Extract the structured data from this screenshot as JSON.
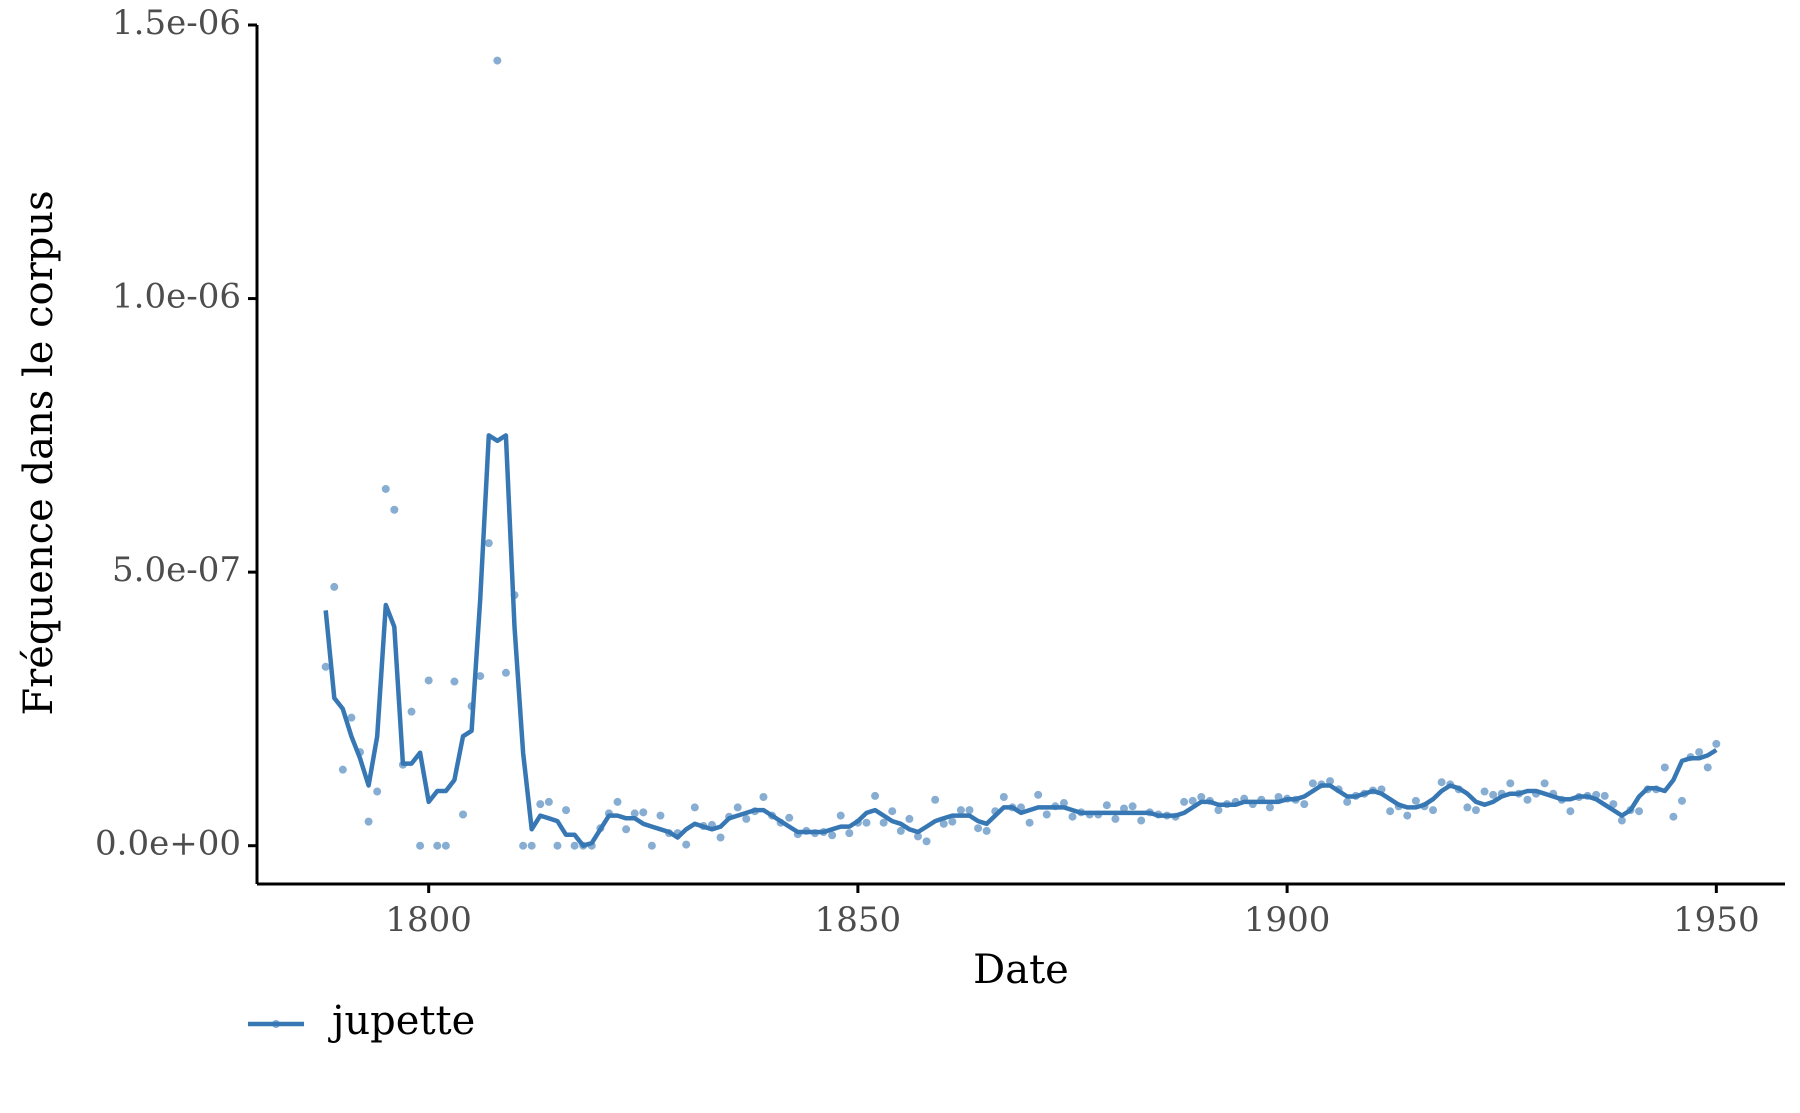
{
  "chart_data": {
    "type": "line",
    "xlabel": "Date",
    "ylabel": "Fréquence dans le corpus",
    "xlim": [
      1780,
      1958
    ],
    "xticks": [
      1800,
      1850,
      1900,
      1950
    ],
    "ylim": [
      -7e-08,
      1.5e-06
    ],
    "yticks": [
      {
        "value": 0,
        "label": "0.0e+00"
      },
      {
        "value": 5e-07,
        "label": "5.0e-07"
      },
      {
        "value": 1e-06,
        "label": "1.0e-06"
      },
      {
        "value": 1.5e-06,
        "label": "1.5e-06"
      }
    ],
    "legend": "bottom-left",
    "series": [
      {
        "name": "jupette",
        "color": "#3778b4",
        "x": [
          1788,
          1789,
          1790,
          1791,
          1792,
          1793,
          1794,
          1795,
          1796,
          1797,
          1798,
          1799,
          1800,
          1801,
          1802,
          1803,
          1804,
          1805,
          1806,
          1807,
          1808,
          1809,
          1810,
          1811,
          1812,
          1813,
          1814,
          1815,
          1816,
          1817,
          1818,
          1819,
          1820,
          1821,
          1822,
          1823,
          1824,
          1825,
          1826,
          1827,
          1828,
          1829,
          1830,
          1831,
          1832,
          1833,
          1834,
          1835,
          1836,
          1837,
          1838,
          1839,
          1840,
          1841,
          1842,
          1843,
          1844,
          1845,
          1846,
          1847,
          1848,
          1849,
          1850,
          1851,
          1852,
          1853,
          1854,
          1855,
          1856,
          1857,
          1858,
          1859,
          1860,
          1861,
          1862,
          1863,
          1864,
          1865,
          1866,
          1867,
          1868,
          1869,
          1870,
          1871,
          1872,
          1873,
          1874,
          1875,
          1876,
          1877,
          1878,
          1879,
          1880,
          1881,
          1882,
          1883,
          1884,
          1885,
          1886,
          1887,
          1888,
          1889,
          1890,
          1891,
          1892,
          1893,
          1894,
          1895,
          1896,
          1897,
          1898,
          1899,
          1900,
          1901,
          1902,
          1903,
          1904,
          1905,
          1906,
          1907,
          1908,
          1909,
          1910,
          1911,
          1912,
          1913,
          1914,
          1915,
          1916,
          1917,
          1918,
          1919,
          1920,
          1921,
          1922,
          1923,
          1924,
          1925,
          1926,
          1927,
          1928,
          1929,
          1930,
          1931,
          1932,
          1933,
          1934,
          1935,
          1936,
          1937,
          1938,
          1939,
          1940,
          1941,
          1942,
          1943,
          1944,
          1945,
          1946,
          1947,
          1948,
          1949,
          1950
        ],
        "values": [
          3.27e-07,
          4.73e-07,
          1.39e-07,
          2.34e-07,
          1.71e-07,
          4.4e-08,
          9.9e-08,
          6.52e-07,
          6.14e-07,
          1.48e-07,
          2.45e-07,
          0,
          3.02e-07,
          0,
          0,
          3e-07,
          5.7e-08,
          2.55e-07,
          3.1e-07,
          5.53e-07,
          1.435e-06,
          3.16e-07,
          4.58e-07,
          0,
          0,
          7.6e-08,
          8e-08,
          0,
          6.5e-08,
          0,
          0,
          0,
          3.2e-08,
          5.9e-08,
          8e-08,
          3e-08,
          5.9e-08,
          6.1e-08,
          0,
          5.5e-08,
          2.3e-08,
          2.3e-08,
          2e-09,
          7e-08,
          3.6e-08,
          3.8e-08,
          1.5e-08,
          5.3e-08,
          7e-08,
          4.9e-08,
          6.3e-08,
          8.9e-08,
          5.5e-08,
          4.2e-08,
          5.1e-08,
          2.1e-08,
          2.7e-08,
          2.3e-08,
          2.5e-08,
          1.9e-08,
          5.5e-08,
          2.3e-08,
          4.2e-08,
          4.2e-08,
          9.1e-08,
          4.2e-08,
          6.3e-08,
          2.7e-08,
          4.9e-08,
          1.7e-08,
          8e-09,
          8.4e-08,
          4e-08,
          4.4e-08,
          6.5e-08,
          6.5e-08,
          3.2e-08,
          2.7e-08,
          6.3e-08,
          8.9e-08,
          7e-08,
          7e-08,
          4.2e-08,
          9.3e-08,
          5.7e-08,
          7.2e-08,
          7.8e-08,
          5.3e-08,
          6.1e-08,
          5.7e-08,
          5.7e-08,
          7.4e-08,
          4.9e-08,
          6.8e-08,
          7.2e-08,
          4.6e-08,
          6.1e-08,
          5.7e-08,
          5.5e-08,
          5.3e-08,
          8e-08,
          8.2e-08,
          8.9e-08,
          8.2e-08,
          6.5e-08,
          7.6e-08,
          8e-08,
          8.6e-08,
          7.6e-08,
          8.4e-08,
          7e-08,
          8.9e-08,
          8.6e-08,
          8.4e-08,
          7.6e-08,
          1.14e-07,
          1.12e-07,
          1.18e-07,
          1.03e-07,
          8e-08,
          9.1e-08,
          9.5e-08,
          1.01e-07,
          1.03e-07,
          6.3e-08,
          7.2e-08,
          5.5e-08,
          8.2e-08,
          7.2e-08,
          6.5e-08,
          1.16e-07,
          1.12e-07,
          1.03e-07,
          7e-08,
          6.5e-08,
          9.9e-08,
          9.3e-08,
          9.5e-08,
          1.14e-07,
          9.5e-08,
          8.4e-08,
          9.5e-08,
          1.14e-07,
          9.5e-08,
          8.4e-08,
          6.3e-08,
          8.9e-08,
          9.1e-08,
          9.3e-08,
          9.1e-08,
          7.6e-08,
          4.6e-08,
          6.5e-08,
          6.3e-08,
          1.03e-07,
          1.03e-07,
          1.43e-07,
          5.3e-08,
          8.2e-08,
          1.62e-07,
          1.71e-07,
          1.43e-07,
          1.86e-07
        ],
        "smooth": [
          4.3e-07,
          2.7e-07,
          2.5e-07,
          2e-07,
          1.6e-07,
          1.1e-07,
          2e-07,
          4.4e-07,
          4e-07,
          1.5e-07,
          1.5e-07,
          1.7e-07,
          8e-08,
          1e-07,
          1e-07,
          1.2e-07,
          2e-07,
          2.1e-07,
          4.5e-07,
          7.5e-07,
          7.4e-07,
          7.5e-07,
          4e-07,
          1.7e-07,
          3e-08,
          5.5e-08,
          5e-08,
          4.5e-08,
          2e-08,
          2e-08,
          0,
          5e-09,
          3e-08,
          5.5e-08,
          5.5e-08,
          5e-08,
          5e-08,
          4e-08,
          3.5e-08,
          3e-08,
          2.5e-08,
          1.5e-08,
          3e-08,
          4e-08,
          3.5e-08,
          3e-08,
          3.5e-08,
          5e-08,
          5.5e-08,
          6e-08,
          6.5e-08,
          6.5e-08,
          5.5e-08,
          4.5e-08,
          3.5e-08,
          2.5e-08,
          2.5e-08,
          2.5e-08,
          2.5e-08,
          3e-08,
          3.5e-08,
          3.5e-08,
          4.5e-08,
          6e-08,
          6.5e-08,
          5.5e-08,
          4.5e-08,
          4e-08,
          3e-08,
          2.5e-08,
          3.5e-08,
          4.5e-08,
          5e-08,
          5.5e-08,
          5.5e-08,
          5.5e-08,
          4.5e-08,
          4e-08,
          5.5e-08,
          7e-08,
          7e-08,
          6e-08,
          6.5e-08,
          7e-08,
          7e-08,
          7e-08,
          7e-08,
          6.5e-08,
          6e-08,
          6e-08,
          6e-08,
          6e-08,
          6e-08,
          6e-08,
          6e-08,
          6e-08,
          6e-08,
          5.5e-08,
          5.5e-08,
          5.5e-08,
          6e-08,
          7e-08,
          8e-08,
          8e-08,
          7.5e-08,
          7.5e-08,
          7.5e-08,
          8e-08,
          8e-08,
          8e-08,
          8e-08,
          8e-08,
          8.5e-08,
          8.5e-08,
          9e-08,
          1e-07,
          1.1e-07,
          1.1e-07,
          1e-07,
          9e-08,
          9e-08,
          9.5e-08,
          1e-07,
          9.5e-08,
          8.5e-08,
          7.5e-08,
          7e-08,
          7e-08,
          7.5e-08,
          8.5e-08,
          1e-07,
          1.1e-07,
          1.05e-07,
          9.5e-08,
          8e-08,
          7.5e-08,
          8e-08,
          9e-08,
          9.5e-08,
          9.5e-08,
          1e-07,
          1e-07,
          9.5e-08,
          9e-08,
          8.5e-08,
          8.5e-08,
          9e-08,
          9e-08,
          8.5e-08,
          7.5e-08,
          6.5e-08,
          5.5e-08,
          6.5e-08,
          9e-08,
          1.05e-07,
          1.05e-07,
          1e-07,
          1.2e-07,
          1.55e-07,
          1.6e-07,
          1.6e-07,
          1.65e-07,
          1.75e-07
        ]
      }
    ]
  }
}
